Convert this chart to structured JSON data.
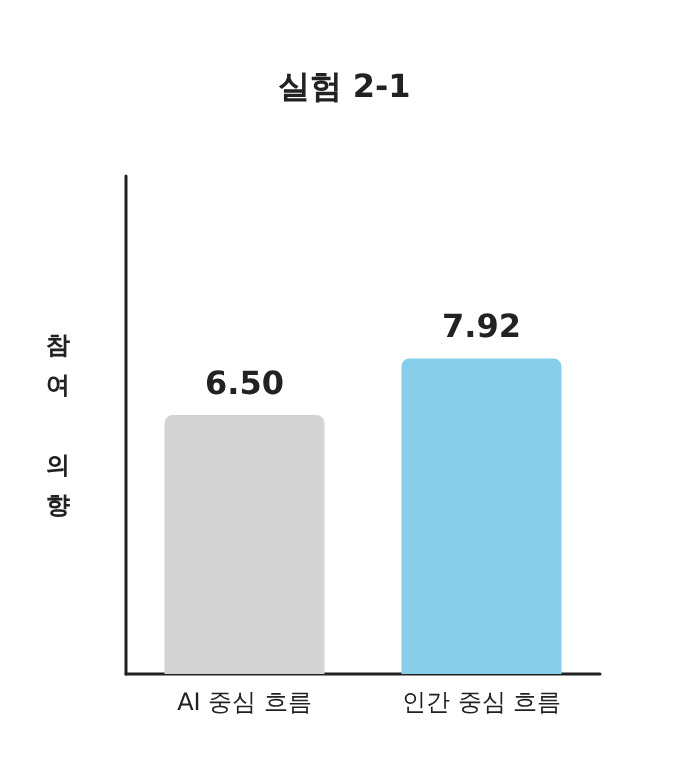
{
  "chart_data": {
    "type": "bar",
    "title": "실험 2-1",
    "ylabel": "참여 의향",
    "categories": [
      "AI 중심 흐름",
      "인간 중심 흐름"
    ],
    "values": [
      6.5,
      7.92
    ],
    "colors": [
      "#d3d3d3",
      "#87ceeb"
    ],
    "value_labels": [
      "6.50",
      "7.92"
    ],
    "ylim": [
      0,
      12.5
    ],
    "tick_labels": "x"
  }
}
